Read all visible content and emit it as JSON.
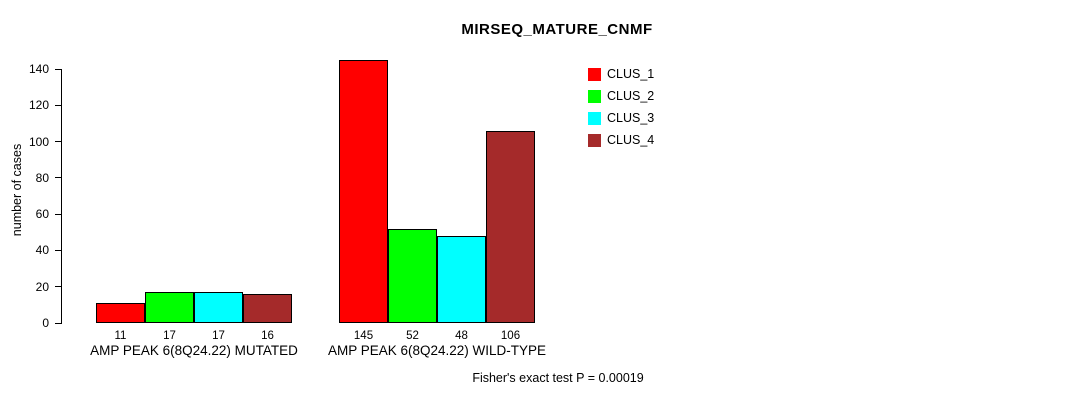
{
  "chart_data": {
    "type": "bar",
    "title": "MIRSEQ_MATURE_CNMF",
    "ylabel": "number of cases",
    "xlabel": "",
    "ylim": [
      0,
      145
    ],
    "yticks": [
      0,
      20,
      40,
      60,
      80,
      100,
      120,
      140
    ],
    "categories": [
      "AMP PEAK 6(8Q24.22) MUTATED",
      "AMP PEAK 6(8Q24.22) WILD-TYPE"
    ],
    "series": [
      {
        "name": "CLUS_1",
        "color": "#ff0000",
        "values": [
          11,
          145
        ]
      },
      {
        "name": "CLUS_2",
        "color": "#00ff00",
        "values": [
          17,
          52
        ]
      },
      {
        "name": "CLUS_3",
        "color": "#00ffff",
        "values": [
          17,
          48
        ]
      },
      {
        "name": "CLUS_4",
        "color": "#a52a2a",
        "values": [
          16,
          106
        ]
      }
    ],
    "legend_position": "top-right",
    "grid": false,
    "bar_value_labels": [
      [
        11,
        17,
        17,
        16
      ],
      [
        145,
        52,
        48,
        106
      ]
    ],
    "annotation": "Fisher's exact test P = 0.00019"
  }
}
